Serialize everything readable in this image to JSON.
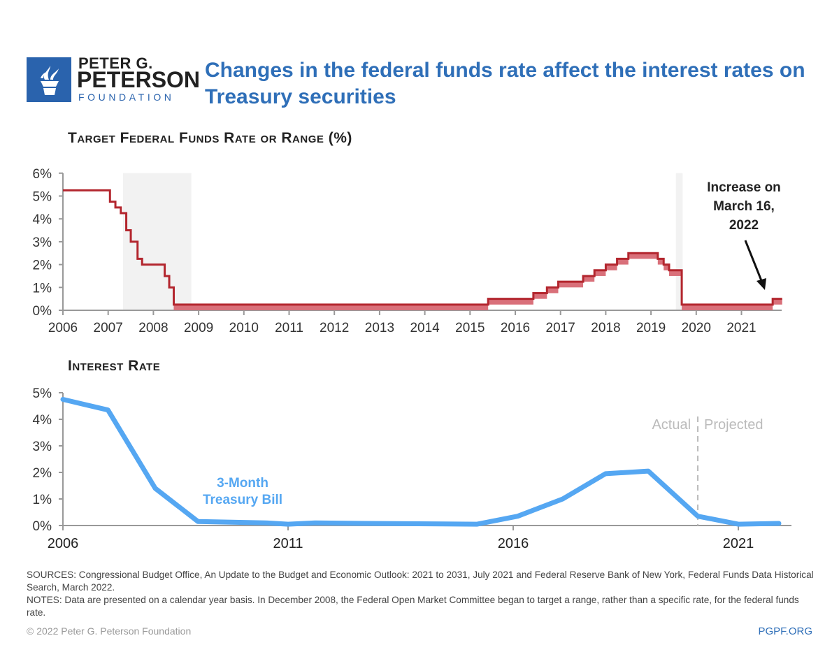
{
  "logo": {
    "line1": "PETER G.",
    "line2": "PETERSON",
    "line3": "FOUNDATION"
  },
  "title": "Changes in the federal funds rate affect the interest rates on Treasury securities",
  "colors": {
    "brand": "#2a63ad",
    "rate_line": "#b3262e",
    "rate_band": "#d9707a",
    "tbill": "#55a7f2",
    "recession": "#f2f2f2"
  },
  "chart_data": [
    {
      "type": "line",
      "title": "Target Federal Funds Rate or Range (%)",
      "xlim": [
        2006,
        2021.9
      ],
      "ylim": [
        0,
        6
      ],
      "yticks": [
        "0%",
        "1%",
        "2%",
        "3%",
        "4%",
        "5%",
        "6%"
      ],
      "xticks": [
        "2006",
        "2007",
        "2008",
        "2009",
        "2010",
        "2011",
        "2012",
        "2013",
        "2014",
        "2015",
        "2016",
        "2017",
        "2018",
        "2019",
        "2020",
        "2021"
      ],
      "recessions": [
        [
          2007.33,
          2008.84
        ],
        [
          2019.55,
          2019.7
        ]
      ],
      "steps": [
        [
          2006,
          2007.04,
          5.25,
          5.25
        ],
        [
          2007.04,
          2007.16,
          4.75,
          4.75
        ],
        [
          2007.16,
          2007.28,
          4.5,
          4.5
        ],
        [
          2007.28,
          2007.4,
          4.25,
          4.25
        ],
        [
          2007.4,
          2007.5,
          3.5,
          3.5
        ],
        [
          2007.5,
          2007.65,
          3.0,
          3.0
        ],
        [
          2007.65,
          2007.75,
          2.25,
          2.25
        ],
        [
          2007.75,
          2008.25,
          2.0,
          2.0
        ],
        [
          2008.25,
          2008.35,
          1.5,
          1.5
        ],
        [
          2008.35,
          2008.45,
          1.0,
          1.0
        ],
        [
          2008.45,
          2015.4,
          0,
          0.25
        ],
        [
          2015.4,
          2016.4,
          0.25,
          0.5
        ],
        [
          2016.4,
          2016.7,
          0.5,
          0.75
        ],
        [
          2016.7,
          2016.95,
          0.75,
          1.0
        ],
        [
          2016.95,
          2017.5,
          1.0,
          1.25
        ],
        [
          2017.5,
          2017.75,
          1.25,
          1.5
        ],
        [
          2017.75,
          2018.0,
          1.5,
          1.75
        ],
        [
          2018.0,
          2018.25,
          1.75,
          2.0
        ],
        [
          2018.25,
          2018.5,
          2.0,
          2.25
        ],
        [
          2018.5,
          2019.15,
          2.25,
          2.5
        ],
        [
          2019.15,
          2019.28,
          2.0,
          2.25
        ],
        [
          2019.28,
          2019.4,
          1.75,
          2.0
        ],
        [
          2019.4,
          2019.68,
          1.5,
          1.75
        ],
        [
          2019.68,
          2021.69,
          0,
          0.25
        ],
        [
          2021.69,
          2021.9,
          0.25,
          0.5
        ]
      ],
      "annotation": [
        "Increase on",
        "March 16,",
        "2022"
      ]
    },
    {
      "type": "line",
      "title": "Interest Rate",
      "xlim": [
        2006,
        2022
      ],
      "ylim": [
        0,
        5
      ],
      "yticks": [
        "0%",
        "1%",
        "2%",
        "3%",
        "4%",
        "5%"
      ],
      "xticks": [
        "2006",
        "2011",
        "2016",
        "2021"
      ],
      "series": [
        {
          "name": "3-Month Treasury Bill",
          "label_lines": [
            "3-Month",
            "Treasury Bill"
          ],
          "x": [
            2006,
            2007,
            2008.05,
            2009,
            2010.5,
            2011,
            2011.6,
            2012.7,
            2015.2,
            2016.1,
            2017.1,
            2018.05,
            2019,
            2020.1,
            2021,
            2021.9
          ],
          "y": [
            4.75,
            4.35,
            1.4,
            0.15,
            0.1,
            0.05,
            0.1,
            0.08,
            0.05,
            0.35,
            1.0,
            1.95,
            2.05,
            0.35,
            0.05,
            0.08
          ]
        }
      ],
      "divider_year": 2020.1,
      "divider_labels": [
        "Actual",
        "Projected"
      ]
    }
  ],
  "footer": {
    "sources": "SOURCES: Congressional Budget Office, An Update to the Budget and Economic Outlook: 2021 to 2031, July 2021 and Federal Reserve Bank of New York, Federal Funds Data Historical Search, March 2022.",
    "notes": "NOTES: Data are presented on a calendar year basis. In December 2008, the Federal Open Market Committee began to target a range, rather than a specific rate, for the federal funds rate.",
    "copyright": "© 2022 Peter G. Peterson Foundation",
    "site": "PGPF.ORG"
  }
}
